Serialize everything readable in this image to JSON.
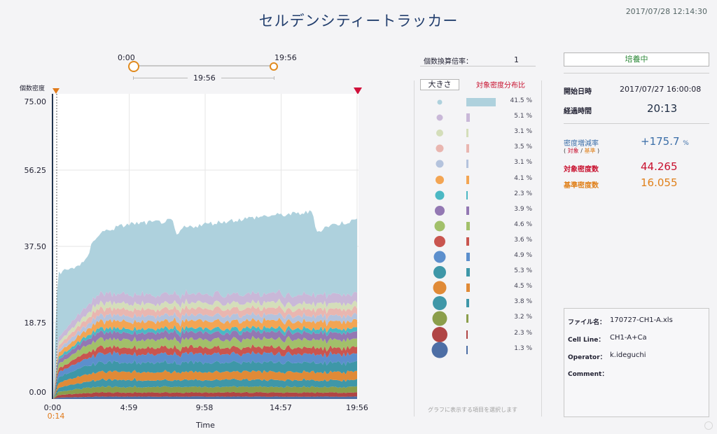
{
  "app_title": "セルデンシティートラッカー",
  "datetime": "2017/07/28 12:14:30",
  "slider": {
    "start_label": "0:00",
    "end_label": "19:56",
    "range_label": "19:56"
  },
  "chart_data": {
    "type": "area",
    "ylabel": "個数密度",
    "xlabel": "Time",
    "ylim": [
      0,
      75
    ],
    "y_ticks": [
      "75.00",
      "56.25",
      "37.50",
      "18.75",
      "0.00"
    ],
    "x_ticks": [
      "0:00",
      "4:59",
      "9:58",
      "14:57",
      "19:56"
    ],
    "x_range_hours": [
      0,
      19.93
    ],
    "current_marker_label": "0:14",
    "current_marker_hours": 0.23,
    "total_upper": [
      [
        0,
        0
      ],
      [
        0.1,
        13
      ],
      [
        0.3,
        31
      ],
      [
        1.2,
        32
      ],
      [
        2.2,
        34
      ],
      [
        2.6,
        39
      ],
      [
        3.2,
        41
      ],
      [
        4,
        42
      ],
      [
        5,
        43
      ],
      [
        7,
        43.5
      ],
      [
        7.8,
        43.8
      ],
      [
        8.1,
        40
      ],
      [
        8.5,
        42
      ],
      [
        10,
        43
      ],
      [
        12,
        44
      ],
      [
        14,
        45
      ],
      [
        16,
        45.5
      ],
      [
        17,
        46
      ],
      [
        17.3,
        41
      ],
      [
        18,
        42.5
      ],
      [
        19.93,
        44
      ]
    ],
    "series": [
      {
        "name": "1",
        "color": "#aed1dd",
        "base": 18.0,
        "upper_frac": 1.0
      },
      {
        "name": "2",
        "color": "#c9b8d8",
        "base": 2.2
      },
      {
        "name": "3",
        "color": "#d4deba",
        "base": 1.4
      },
      {
        "name": "4",
        "color": "#e9b6b0",
        "base": 1.6
      },
      {
        "name": "5",
        "color": "#b4c3dd",
        "base": 1.4
      },
      {
        "name": "6",
        "color": "#f3a553",
        "base": 1.8
      },
      {
        "name": "7",
        "color": "#4bb8c4",
        "base": 1.0
      },
      {
        "name": "8",
        "color": "#9378b3",
        "base": 1.7
      },
      {
        "name": "9",
        "color": "#a2c06a",
        "base": 2.0
      },
      {
        "name": "10",
        "color": "#c9554f",
        "base": 1.6
      },
      {
        "name": "11",
        "color": "#5c8fcd",
        "base": 2.1
      },
      {
        "name": "12",
        "color": "#3e97a8",
        "base": 2.3
      },
      {
        "name": "13",
        "color": "#e08a37",
        "base": 2.0
      },
      {
        "name": "14",
        "color": "#3f97a8",
        "base": 1.7
      },
      {
        "name": "15",
        "color": "#8b9e4b",
        "base": 1.4
      },
      {
        "name": "16",
        "color": "#b04545",
        "base": 1.0
      },
      {
        "name": "17",
        "color": "#4d6ea5",
        "base": 0.6
      }
    ]
  },
  "conversion": {
    "label": "個数換算倍率：",
    "value": "1"
  },
  "legend": {
    "size_button": "大きさ",
    "header": "対象密度分布比",
    "footer": "グラフに表示する項目を選択します",
    "items": [
      {
        "pct": "41.5 %",
        "color": "#aed1dd",
        "dot_size": 7,
        "frac": 0.415
      },
      {
        "pct": "5.1 %",
        "color": "#c9b8d8",
        "dot_size": 9,
        "frac": 0.051
      },
      {
        "pct": "3.1 %",
        "color": "#d4deba",
        "dot_size": 10,
        "frac": 0.031
      },
      {
        "pct": "3.5 %",
        "color": "#e9b6b0",
        "dot_size": 11,
        "frac": 0.035
      },
      {
        "pct": "3.1 %",
        "color": "#b4c3dd",
        "dot_size": 11,
        "frac": 0.031
      },
      {
        "pct": "4.1 %",
        "color": "#f3a553",
        "dot_size": 12,
        "frac": 0.041
      },
      {
        "pct": "2.3 %",
        "color": "#4bb8c4",
        "dot_size": 13,
        "frac": 0.023
      },
      {
        "pct": "3.9 %",
        "color": "#9378b3",
        "dot_size": 14,
        "frac": 0.039
      },
      {
        "pct": "4.6 %",
        "color": "#a2c06a",
        "dot_size": 15,
        "frac": 0.046
      },
      {
        "pct": "3.6 %",
        "color": "#c9554f",
        "dot_size": 16,
        "frac": 0.036
      },
      {
        "pct": "4.9 %",
        "color": "#5c8fcd",
        "dot_size": 17,
        "frac": 0.049
      },
      {
        "pct": "5.3 %",
        "color": "#3e97a8",
        "dot_size": 18,
        "frac": 0.053
      },
      {
        "pct": "4.5 %",
        "color": "#e08a37",
        "dot_size": 19,
        "frac": 0.045
      },
      {
        "pct": "3.8 %",
        "color": "#3f97a8",
        "dot_size": 20,
        "frac": 0.038
      },
      {
        "pct": "3.2 %",
        "color": "#8b9e4b",
        "dot_size": 21,
        "frac": 0.032
      },
      {
        "pct": "2.3 %",
        "color": "#b04545",
        "dot_size": 22,
        "frac": 0.023
      },
      {
        "pct": "1.3 %",
        "color": "#4d6ea5",
        "dot_size": 23,
        "frac": 0.013
      }
    ]
  },
  "status": {
    "label": "培養中",
    "color": "#2f8a3a"
  },
  "start_time": {
    "label": "開始日時",
    "value": "2017/07/27 16:00:08"
  },
  "elapsed": {
    "label": "経過時間",
    "value": "20:13"
  },
  "density_rate": {
    "label": "密度増減率",
    "sub_target": "対象",
    "sub_sep": " / ",
    "sub_base": "基準",
    "value": "+175.7",
    "unit": "%"
  },
  "target_density": {
    "label": "対象密度数",
    "value": "44.265",
    "color": "#c8102e"
  },
  "base_density": {
    "label": "基準密度数",
    "value": "16.055",
    "color": "#e0801a"
  },
  "file_info": {
    "file_label": "ファイル名：",
    "file_value": "170727-CH1-A.xls",
    "cell_label": "Cell Line：",
    "cell_value": "CH1-A+Ca",
    "operator_label": "Operator：",
    "operator_value": "k.ideguchi",
    "comment_label": "Comment：",
    "comment_value": ""
  }
}
